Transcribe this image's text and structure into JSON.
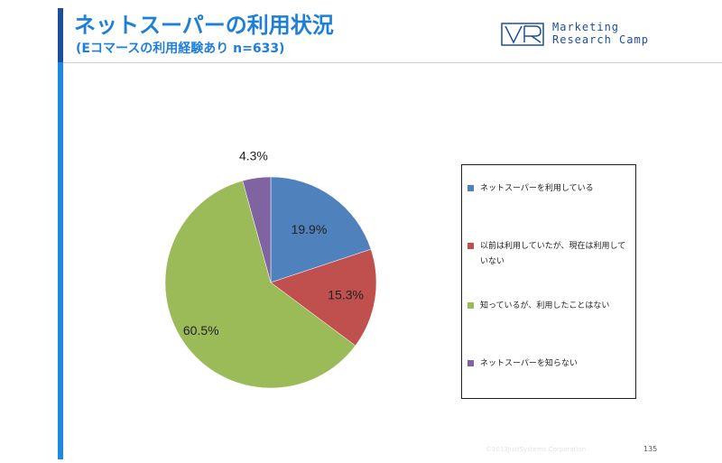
{
  "header": {
    "title": "ネットスーパーの利用状況",
    "subtitle": "(Eコマースの利用経験あり n=633)"
  },
  "logo": {
    "mark": "VR",
    "line1": "Marketing",
    "line2": "Research Camp",
    "color": "#1f4e9b"
  },
  "chart_data": {
    "type": "pie",
    "title": "",
    "unit": "%",
    "slices": [
      {
        "label": "ネットスーパーを利用している",
        "value": 19.9,
        "display": "19.9%",
        "color": "#4f81bd"
      },
      {
        "label": "以前は利用していたが、現在は利用していない",
        "value": 15.3,
        "display": "15.3%",
        "color": "#c0504d"
      },
      {
        "label": "知っているが、利用したことはない",
        "value": 60.5,
        "display": "60.5%",
        "color": "#9bbb59"
      },
      {
        "label": "ネットスーパーを知らない",
        "value": 4.3,
        "display": "4.3%",
        "color": "#8064a2"
      }
    ],
    "legend_position": "right"
  },
  "footer": {
    "copyright": "©2013JustSystems Corporation",
    "page": "135"
  }
}
